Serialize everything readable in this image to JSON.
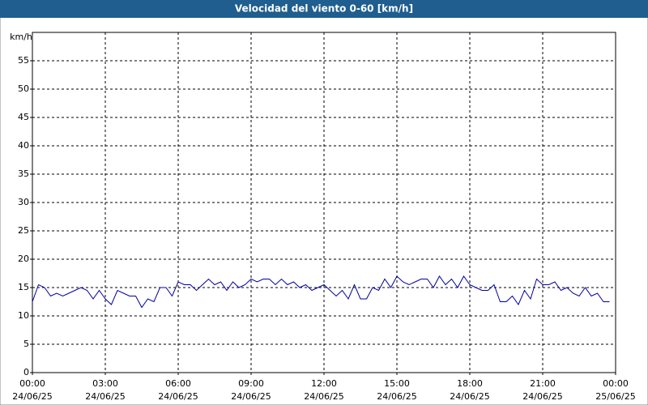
{
  "chart_data": {
    "type": "line",
    "title": "Velocidad del viento 0-60 [km/h]",
    "y_label": "km/h",
    "xlim": [
      0,
      24
    ],
    "ylim": [
      0,
      60
    ],
    "xticks": [
      {
        "value": 0,
        "label": "00:00",
        "date": "24/06/25"
      },
      {
        "value": 3,
        "label": "03:00",
        "date": "24/06/25"
      },
      {
        "value": 6,
        "label": "06:00",
        "date": "24/06/25"
      },
      {
        "value": 9,
        "label": "09:00",
        "date": "24/06/25"
      },
      {
        "value": 12,
        "label": "12:00",
        "date": "24/06/25"
      },
      {
        "value": 15,
        "label": "15:00",
        "date": "24/06/25"
      },
      {
        "value": 18,
        "label": "18:00",
        "date": "24/06/25"
      },
      {
        "value": 21,
        "label": "21:00",
        "date": "24/06/25"
      },
      {
        "value": 24,
        "label": "00:00",
        "date": "25/06/25"
      }
    ],
    "yticks": [
      0,
      5,
      10,
      15,
      20,
      25,
      30,
      35,
      40,
      45,
      50,
      55
    ],
    "grid": true,
    "x": [
      0,
      0.25,
      0.5,
      0.75,
      1,
      1.25,
      1.5,
      1.75,
      2,
      2.25,
      2.5,
      2.75,
      3,
      3.25,
      3.5,
      3.75,
      4,
      4.25,
      4.5,
      4.75,
      5,
      5.25,
      5.5,
      5.75,
      6,
      6.25,
      6.5,
      6.75,
      7,
      7.25,
      7.5,
      7.75,
      8,
      8.25,
      8.5,
      8.75,
      9,
      9.25,
      9.5,
      9.75,
      10,
      10.25,
      10.5,
      10.75,
      11,
      11.25,
      11.5,
      11.75,
      12,
      12.25,
      12.5,
      12.75,
      13,
      13.25,
      13.5,
      13.75,
      14,
      14.25,
      14.5,
      14.75,
      15,
      15.25,
      15.5,
      15.75,
      16,
      16.25,
      16.5,
      16.75,
      17,
      17.25,
      17.5,
      17.75,
      18,
      18.25,
      18.5,
      18.75,
      19,
      19.25,
      19.5,
      19.75,
      20,
      20.25,
      20.5,
      20.75,
      21,
      21.25,
      21.5,
      21.75,
      22,
      22.25,
      22.5,
      22.75,
      23,
      23.25,
      23.5,
      23.75
    ],
    "series": [
      {
        "name": "Velocidad del viento",
        "color": "#0000a0",
        "values": [
          12.5,
          15.5,
          15,
          13.5,
          14,
          13.5,
          14,
          14.5,
          15,
          14.5,
          13,
          14.5,
          13,
          12,
          14.5,
          14,
          13.5,
          13.5,
          11.5,
          13,
          12.5,
          15,
          15,
          13.5,
          16,
          15.5,
          15.5,
          14.5,
          15.5,
          16.5,
          15.5,
          16,
          14.5,
          16,
          15,
          15.5,
          16.5,
          16,
          16.5,
          16.5,
          15.5,
          16.5,
          15.5,
          16,
          15,
          15.5,
          14.5,
          15,
          15.5,
          14.5,
          13.5,
          14.5,
          13,
          15.5,
          13,
          13,
          15,
          14.5,
          16.5,
          15,
          17,
          16,
          15.5,
          16,
          16.5,
          16.5,
          15,
          17,
          15.5,
          16.5,
          15,
          17,
          15.5,
          15,
          14.5,
          14.5,
          15.5,
          12.5,
          12.5,
          13.5,
          12,
          14.5,
          13,
          16.5,
          15.5,
          15.5,
          16,
          14.5,
          15,
          14,
          13.5,
          15,
          13.5,
          14,
          12.5,
          12.5
        ]
      }
    ]
  }
}
